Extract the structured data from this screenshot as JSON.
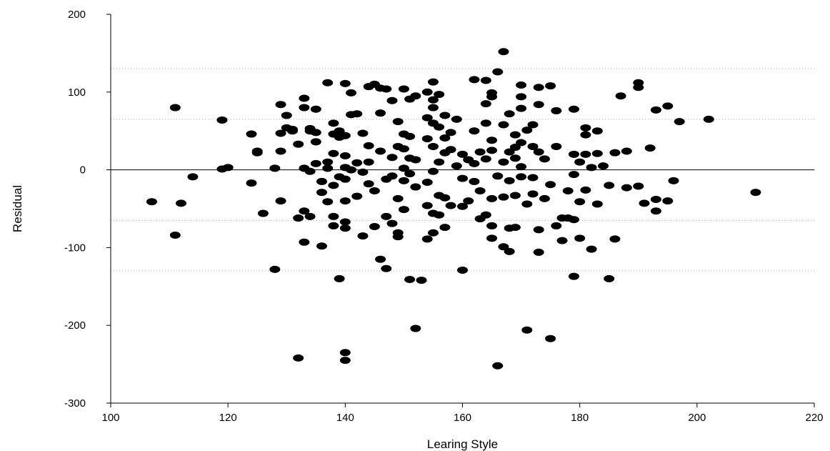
{
  "chart_data": {
    "type": "scatter",
    "title": "",
    "xlabel": "Learing Style",
    "ylabel": "Residual",
    "xlim": [
      100,
      220
    ],
    "ylim": [
      -300,
      200
    ],
    "xticks": [
      100,
      120,
      140,
      160,
      180,
      200,
      220
    ],
    "yticks": [
      -300,
      -200,
      -100,
      0,
      100,
      200
    ],
    "zero_line": 0,
    "dotted_reference_lines": [
      130,
      65,
      -65,
      -130
    ],
    "grid": false,
    "legend": "none",
    "marker_color": "#000000",
    "points": [
      [
        107,
        -41
      ],
      [
        111,
        80
      ],
      [
        111,
        -84
      ],
      [
        112,
        -43
      ],
      [
        114,
        -9
      ],
      [
        119,
        64
      ],
      [
        119,
        1
      ],
      [
        120,
        3
      ],
      [
        124,
        -17
      ],
      [
        124,
        46
      ],
      [
        125,
        24
      ],
      [
        125,
        22
      ],
      [
        126,
        -56
      ],
      [
        128,
        2
      ],
      [
        128,
        -128
      ],
      [
        129,
        84
      ],
      [
        129,
        47
      ],
      [
        129,
        24
      ],
      [
        129,
        -40
      ],
      [
        130,
        70
      ],
      [
        130,
        54
      ],
      [
        131,
        50
      ],
      [
        131,
        52
      ],
      [
        132,
        33
      ],
      [
        132,
        -62
      ],
      [
        132,
        -242
      ],
      [
        133,
        92
      ],
      [
        133,
        80
      ],
      [
        133,
        2
      ],
      [
        133,
        -53
      ],
      [
        133,
        -93
      ],
      [
        134,
        53
      ],
      [
        134,
        50
      ],
      [
        134,
        -2
      ],
      [
        134,
        -60
      ],
      [
        135,
        78
      ],
      [
        135,
        48
      ],
      [
        135,
        36
      ],
      [
        135,
        8
      ],
      [
        136,
        -15
      ],
      [
        136,
        -29
      ],
      [
        136,
        -98
      ],
      [
        137,
        112
      ],
      [
        137,
        -41
      ],
      [
        137,
        10
      ],
      [
        137,
        2
      ],
      [
        138,
        60
      ],
      [
        138,
        46
      ],
      [
        138,
        21
      ],
      [
        138,
        -20
      ],
      [
        138,
        -60
      ],
      [
        138,
        -72
      ],
      [
        139,
        50
      ],
      [
        139,
        42
      ],
      [
        139,
        -9
      ],
      [
        139,
        -140
      ],
      [
        140,
        111
      ],
      [
        140,
        44
      ],
      [
        140,
        18
      ],
      [
        140,
        3
      ],
      [
        140,
        -12
      ],
      [
        140,
        -40
      ],
      [
        140,
        -67
      ],
      [
        140,
        -75
      ],
      [
        140,
        -235
      ],
      [
        140,
        -245
      ],
      [
        141,
        99
      ],
      [
        141,
        71
      ],
      [
        141,
        0
      ],
      [
        142,
        72
      ],
      [
        142,
        9
      ],
      [
        142,
        -34
      ],
      [
        143,
        47
      ],
      [
        143,
        -3
      ],
      [
        143,
        -85
      ],
      [
        144,
        107
      ],
      [
        144,
        31
      ],
      [
        144,
        10
      ],
      [
        144,
        -18
      ],
      [
        145,
        110
      ],
      [
        145,
        -27
      ],
      [
        145,
        -73
      ],
      [
        146,
        105
      ],
      [
        146,
        73
      ],
      [
        146,
        24
      ],
      [
        146,
        -115
      ],
      [
        147,
        104
      ],
      [
        147,
        -12
      ],
      [
        147,
        -60
      ],
      [
        147,
        -127
      ],
      [
        148,
        89
      ],
      [
        148,
        16
      ],
      [
        148,
        -8
      ],
      [
        148,
        -69
      ],
      [
        149,
        62
      ],
      [
        149,
        30
      ],
      [
        149,
        -37
      ],
      [
        149,
        -81
      ],
      [
        149,
        -86
      ],
      [
        150,
        104
      ],
      [
        150,
        46
      ],
      [
        150,
        27
      ],
      [
        150,
        2
      ],
      [
        150,
        -14
      ],
      [
        150,
        -51
      ],
      [
        151,
        91
      ],
      [
        151,
        43
      ],
      [
        151,
        15
      ],
      [
        151,
        -5
      ],
      [
        151,
        -141
      ],
      [
        152,
        95
      ],
      [
        152,
        13
      ],
      [
        152,
        -22
      ],
      [
        152,
        -204
      ],
      [
        153,
        -142
      ],
      [
        154,
        100
      ],
      [
        154,
        67
      ],
      [
        154,
        40
      ],
      [
        154,
        -16
      ],
      [
        154,
        -46
      ],
      [
        154,
        -89
      ],
      [
        155,
        113
      ],
      [
        155,
        90
      ],
      [
        155,
        80
      ],
      [
        155,
        60
      ],
      [
        155,
        30
      ],
      [
        155,
        -2
      ],
      [
        155,
        -56
      ],
      [
        155,
        -81
      ],
      [
        156,
        97
      ],
      [
        156,
        55
      ],
      [
        156,
        10
      ],
      [
        156,
        -33
      ],
      [
        156,
        -58
      ],
      [
        157,
        70
      ],
      [
        157,
        41
      ],
      [
        157,
        22
      ],
      [
        157,
        -36
      ],
      [
        157,
        -74
      ],
      [
        158,
        48
      ],
      [
        158,
        26
      ],
      [
        158,
        -46
      ],
      [
        159,
        65
      ],
      [
        159,
        5
      ],
      [
        160,
        20
      ],
      [
        160,
        -11
      ],
      [
        160,
        -47
      ],
      [
        160,
        -129
      ],
      [
        161,
        13
      ],
      [
        161,
        -40
      ],
      [
        162,
        116
      ],
      [
        162,
        50
      ],
      [
        162,
        8
      ],
      [
        162,
        -15
      ],
      [
        163,
        23
      ],
      [
        163,
        -27
      ],
      [
        163,
        -63
      ],
      [
        164,
        115
      ],
      [
        164,
        85
      ],
      [
        164,
        60
      ],
      [
        164,
        14
      ],
      [
        164,
        -58
      ],
      [
        165,
        99
      ],
      [
        165,
        94
      ],
      [
        165,
        38
      ],
      [
        165,
        25
      ],
      [
        165,
        -37
      ],
      [
        165,
        -72
      ],
      [
        165,
        -88
      ],
      [
        166,
        126
      ],
      [
        166,
        -8
      ],
      [
        166,
        -252
      ],
      [
        167,
        152
      ],
      [
        167,
        58
      ],
      [
        167,
        10
      ],
      [
        167,
        -35
      ],
      [
        167,
        -99
      ],
      [
        168,
        72
      ],
      [
        168,
        23
      ],
      [
        168,
        -14
      ],
      [
        168,
        -75
      ],
      [
        168,
        -105
      ],
      [
        169,
        45
      ],
      [
        169,
        29
      ],
      [
        169,
        15
      ],
      [
        169,
        -33
      ],
      [
        169,
        -74
      ],
      [
        170,
        109
      ],
      [
        170,
        94
      ],
      [
        170,
        79
      ],
      [
        170,
        35
      ],
      [
        170,
        4
      ],
      [
        170,
        -9
      ],
      [
        171,
        51
      ],
      [
        171,
        -44
      ],
      [
        171,
        -206
      ],
      [
        172,
        58
      ],
      [
        172,
        30
      ],
      [
        172,
        -10
      ],
      [
        172,
        -31
      ],
      [
        173,
        106
      ],
      [
        173,
        84
      ],
      [
        173,
        23
      ],
      [
        173,
        -77
      ],
      [
        173,
        -106
      ],
      [
        174,
        14
      ],
      [
        174,
        -37
      ],
      [
        175,
        108
      ],
      [
        175,
        -19
      ],
      [
        175,
        -217
      ],
      [
        176,
        76
      ],
      [
        176,
        30
      ],
      [
        176,
        -72
      ],
      [
        177,
        -62
      ],
      [
        177,
        -91
      ],
      [
        178,
        -27
      ],
      [
        178,
        -62
      ],
      [
        179,
        78
      ],
      [
        179,
        20
      ],
      [
        179,
        -6
      ],
      [
        179,
        -64
      ],
      [
        179,
        -137
      ],
      [
        180,
        10
      ],
      [
        180,
        -41
      ],
      [
        180,
        -88
      ],
      [
        181,
        54
      ],
      [
        181,
        45
      ],
      [
        181,
        20
      ],
      [
        181,
        -26
      ],
      [
        182,
        3
      ],
      [
        182,
        -102
      ],
      [
        183,
        50
      ],
      [
        183,
        21
      ],
      [
        183,
        -44
      ],
      [
        184,
        5
      ],
      [
        185,
        -20
      ],
      [
        185,
        -140
      ],
      [
        186,
        22
      ],
      [
        186,
        -89
      ],
      [
        187,
        95
      ],
      [
        188,
        24
      ],
      [
        188,
        -23
      ],
      [
        190,
        112
      ],
      [
        190,
        106
      ],
      [
        190,
        -21
      ],
      [
        191,
        -43
      ],
      [
        192,
        28
      ],
      [
        193,
        77
      ],
      [
        193,
        -38
      ],
      [
        193,
        -53
      ],
      [
        195,
        82
      ],
      [
        195,
        -40
      ],
      [
        196,
        -14
      ],
      [
        197,
        62
      ],
      [
        202,
        65
      ],
      [
        210,
        -29
      ]
    ]
  }
}
